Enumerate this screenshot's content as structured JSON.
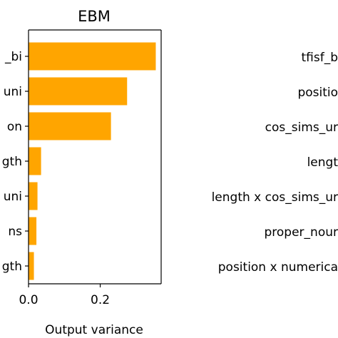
{
  "chart_data": [
    {
      "type": "bar",
      "orientation": "horizontal",
      "title": "EBM",
      "xlabel": "Output variance",
      "categories": [
        "_bi",
        "uni",
        "on",
        "gth",
        "uni",
        "ns",
        "gth"
      ],
      "values": [
        0.355,
        0.275,
        0.23,
        0.035,
        0.025,
        0.022,
        0.015
      ],
      "xlim": [
        0,
        0.37
      ],
      "xticks": [
        0.0,
        0.2
      ],
      "xtick_labels": [
        "0.0",
        "0.2"
      ],
      "bar_color": "#FFA500",
      "grid": false
    },
    {
      "type": "bar",
      "orientation": "horizontal",
      "partial": true,
      "categories": [
        "tfisf_b",
        "positio",
        "cos_sims_ur",
        "lengt",
        "length x cos_sims_ur",
        "proper_nour",
        "position x numerica"
      ]
    }
  ]
}
